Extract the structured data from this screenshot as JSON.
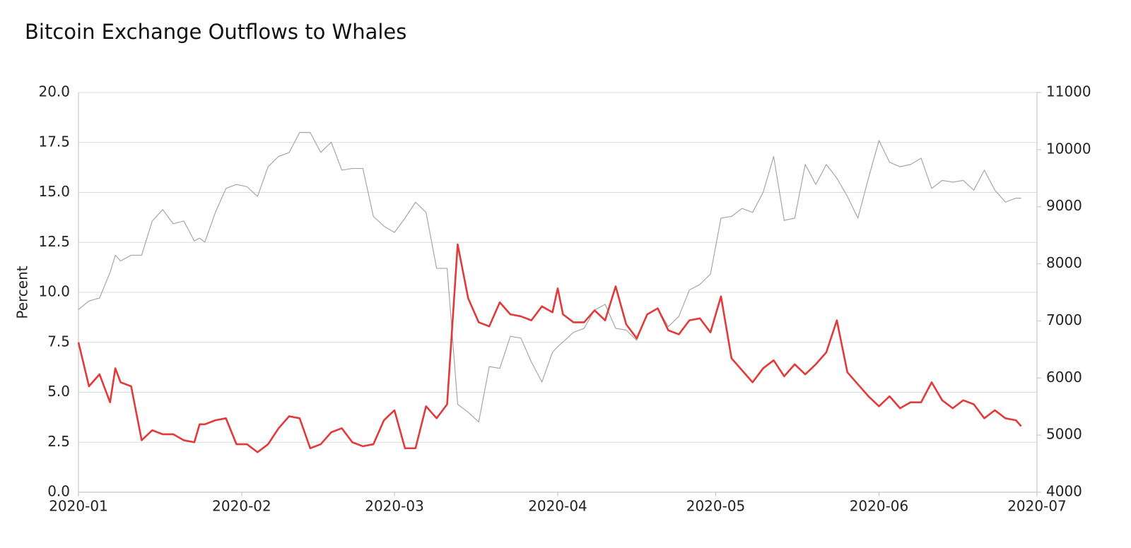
{
  "chart_data": {
    "type": "line",
    "title": "Bitcoin Exchange Outflows to Whales",
    "ylabel": "Percent",
    "x": [
      0,
      2,
      4,
      6,
      7,
      8,
      10,
      12,
      14,
      16,
      18,
      20,
      22,
      23,
      24,
      26,
      28,
      30,
      32,
      34,
      36,
      38,
      40,
      42,
      44,
      46,
      48,
      50,
      52,
      54,
      56,
      58,
      60,
      62,
      64,
      66,
      68,
      70,
      72,
      74,
      76,
      78,
      80,
      82,
      84,
      86,
      88,
      90,
      91,
      92,
      94,
      96,
      98,
      100,
      102,
      104,
      106,
      108,
      110,
      112,
      114,
      116,
      118,
      120,
      122,
      124,
      126,
      128,
      130,
      132,
      134,
      136,
      138,
      140,
      142,
      144,
      146,
      148,
      150,
      152,
      154,
      156,
      158,
      160,
      162,
      164,
      166,
      168,
      170,
      172,
      174,
      176,
      178,
      179
    ],
    "xlim": [
      0,
      182
    ],
    "xticks": [
      {
        "value": 0,
        "label": "2020-01"
      },
      {
        "value": 31,
        "label": "2020-02"
      },
      {
        "value": 60,
        "label": "2020-03"
      },
      {
        "value": 91,
        "label": "2020-04"
      },
      {
        "value": 121,
        "label": "2020-05"
      },
      {
        "value": 152,
        "label": "2020-06"
      },
      {
        "value": 182,
        "label": "2020-07"
      }
    ],
    "ylim": [
      0,
      20
    ],
    "yticks": [
      {
        "value": 0,
        "label": "0.0"
      },
      2.5,
      {
        "value": 5,
        "label": "5.0"
      },
      7.5,
      {
        "value": 10,
        "label": "10.0"
      },
      12.5,
      {
        "value": 15,
        "label": "15.0"
      },
      17.5,
      {
        "value": 20,
        "label": "20.0"
      }
    ],
    "y2lim": [
      4000,
      11000
    ],
    "y2ticks": [
      4000,
      5000,
      6000,
      7000,
      8000,
      9000,
      10000,
      11000
    ],
    "grid": true,
    "series": [
      {
        "color": "#a6a6a6",
        "axis": "y2",
        "values": [
          7200,
          7350,
          7400,
          7850,
          8150,
          8050,
          8150,
          8150,
          8750,
          8950,
          8700,
          8750,
          8400,
          8450,
          8380,
          8900,
          9320,
          9390,
          9350,
          9180,
          9700,
          9880,
          9950,
          10300,
          10300,
          9950,
          10130,
          9640,
          9670,
          9670,
          8830,
          8660,
          8550,
          8800,
          9080,
          8900,
          7920,
          7920,
          5540,
          5400,
          5230,
          6200,
          6170,
          6730,
          6700,
          6280,
          5930,
          6450,
          6550,
          6630,
          6800,
          6870,
          7190,
          7290,
          6870,
          6840,
          6660,
          7120,
          7220,
          6900,
          7080,
          7540,
          7640,
          7820,
          8800,
          8830,
          8970,
          8900,
          9250,
          9880,
          8760,
          8800,
          9740,
          9390,
          9740,
          9500,
          9180,
          8800,
          9500,
          10160,
          9780,
          9700,
          9740,
          9850,
          9320,
          9460,
          9430,
          9460,
          9290,
          9640,
          9290,
          9080,
          9150,
          9150
        ]
      },
      {
        "color": "#e03a3a",
        "values": [
          7.5,
          5.3,
          5.9,
          4.5,
          6.2,
          5.5,
          5.3,
          2.6,
          3.1,
          2.9,
          2.9,
          2.6,
          2.5,
          3.4,
          3.4,
          3.6,
          3.7,
          2.4,
          2.4,
          2.0,
          2.4,
          3.2,
          3.8,
          3.7,
          2.2,
          2.4,
          3.0,
          3.2,
          2.5,
          2.3,
          2.4,
          3.6,
          4.1,
          2.2,
          2.2,
          4.3,
          3.7,
          4.4,
          12.4,
          9.7,
          8.5,
          8.3,
          9.5,
          8.9,
          8.8,
          8.6,
          9.3,
          9.0,
          10.2,
          8.9,
          8.5,
          8.5,
          9.1,
          8.6,
          10.3,
          8.4,
          7.7,
          8.9,
          9.2,
          8.1,
          7.9,
          8.6,
          8.7,
          8.0,
          9.8,
          6.7,
          6.1,
          5.5,
          6.2,
          6.6,
          5.8,
          6.4,
          5.9,
          6.4,
          7.0,
          8.6,
          6.0,
          5.4,
          4.8,
          4.3,
          4.8,
          4.2,
          4.5,
          4.5,
          5.5,
          4.6,
          4.2,
          4.6,
          4.4,
          3.7,
          4.1,
          3.7,
          3.6,
          3.3
        ]
      }
    ]
  }
}
